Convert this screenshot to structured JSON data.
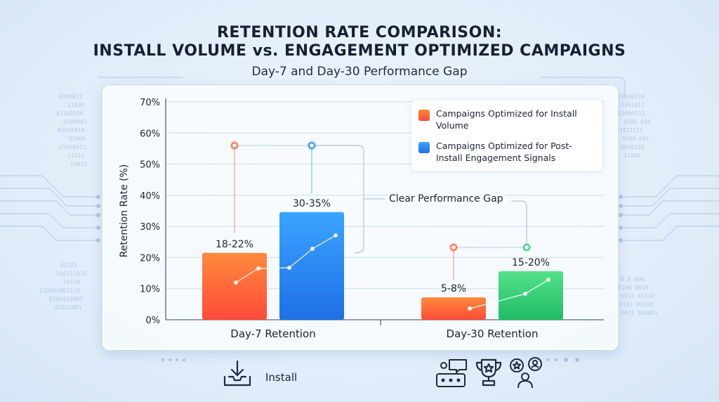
{
  "header": {
    "title_line1": "RETENTION RATE COMPARISON:",
    "title_line2": "INSTALL VOLUME vs. ENGAGEMENT OPTIMIZED CAMPAIGNS",
    "subtitle": "Day-7 and Day-30 Performance Gap"
  },
  "annotation": {
    "gap_label": "Clear Performance Gap"
  },
  "footer": {
    "install_label": "Install"
  },
  "colors": {
    "install_volume": "#ff6a3a",
    "engagement": "#2a8cf2",
    "engagement_day30": "#35d07a"
  },
  "icons": [
    "download-tray-icon",
    "rating-chat-icon",
    "trophy-icon",
    "user-star-icon"
  ],
  "chart_data": {
    "type": "bar",
    "ylabel": "Retention Rate (%)",
    "xlabel": "",
    "ylim": [
      0,
      70
    ],
    "yticks": [
      0,
      10,
      20,
      30,
      40,
      50,
      60,
      70
    ],
    "ytick_suffix": "%",
    "grid": true,
    "legend_position": "top-right",
    "categories": [
      "Day-7 Retention",
      "Day-30 Retention"
    ],
    "series": [
      {
        "name": "Campaigns Optimized for Install Volume",
        "values": [
          21.5,
          7.2
        ],
        "labels": [
          "18-22%",
          "5-8%"
        ]
      },
      {
        "name": "Campaigns Optimized for Post-Install Engagement Signals",
        "values": [
          34.6,
          15.6
        ],
        "labels": [
          "30-35%",
          "15-20%"
        ]
      }
    ]
  }
}
